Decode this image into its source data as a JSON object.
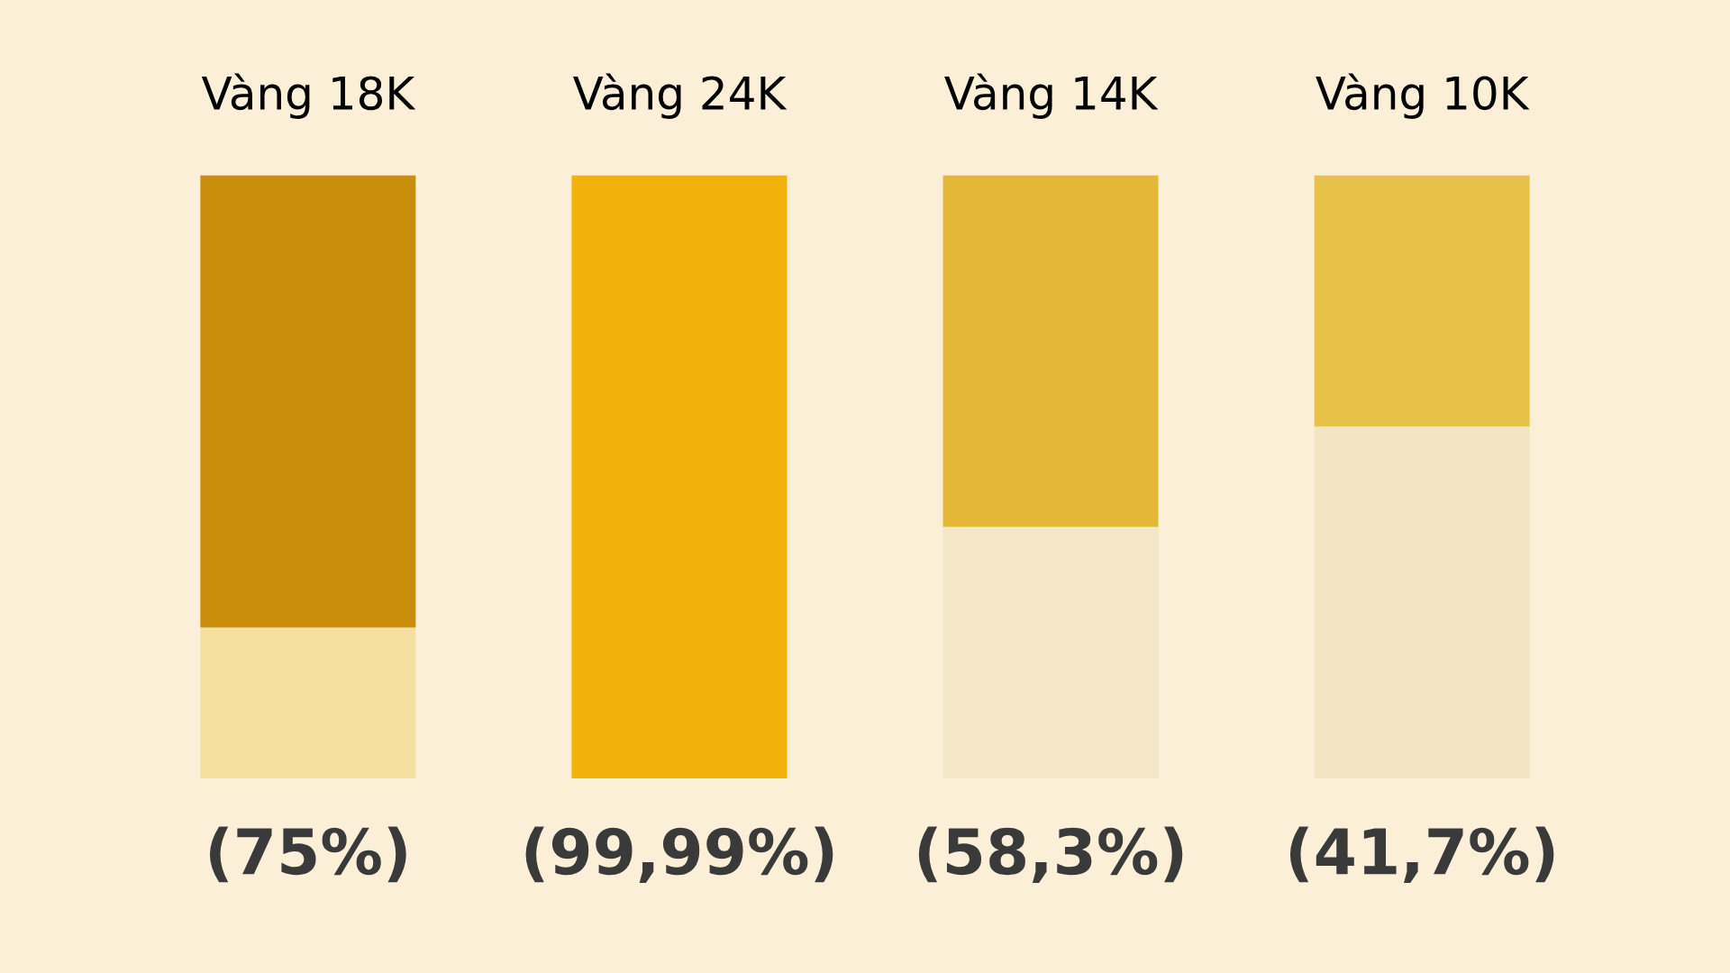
{
  "chart_data": {
    "type": "bar",
    "stacked": true,
    "categories": [
      "Vàng 18K",
      "Vàng 24K",
      "Vàng 14K",
      "Vàng 10K"
    ],
    "series": [
      {
        "colors": [
          "#f4dea0",
          "#f6ebcf",
          "#f4e7c8",
          "#f3e5c4"
        ],
        "values": [
          25,
          0.01,
          41.7,
          58.3
        ]
      },
      {
        "colors": [
          "#c98e0c",
          "#f2b20a",
          "#e3b836",
          "#e8c14a"
        ],
        "values": [
          75,
          99.99,
          58.3,
          41.7
        ],
        "value_labels": [
          "(75%)",
          "(99,99%)",
          "(58,3%)",
          "(41,7%)"
        ]
      }
    ]
  }
}
